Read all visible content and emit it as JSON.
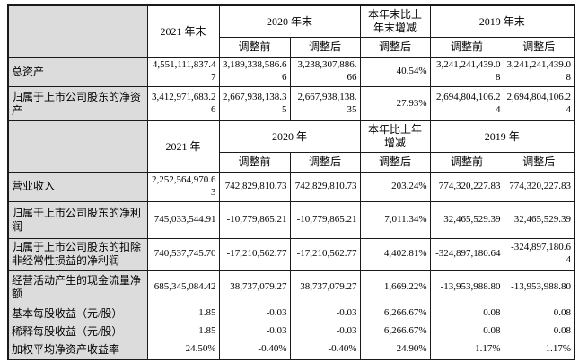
{
  "page": {
    "background_color": "#ffffff",
    "label_column_bg_color": "#dcdcdc",
    "border_color": "#1a1a1a",
    "text_color": "#000000"
  },
  "table": {
    "sections": [
      {
        "header": {
          "period_current": "2021 年末",
          "period_prior": "2020 年末",
          "change": "本年末比上年末增减",
          "period_prior2": "2019 年末",
          "subheaders": [
            "调整前",
            "调整后",
            "调整后",
            "调整前",
            "调整后"
          ]
        },
        "rows": [
          {
            "label": "总资产",
            "values": [
              "4,551,111,837.47",
              "3,189,338,586.66",
              "3,238,307,886.66",
              "40.54%",
              "3,241,241,439.08",
              "3,241,241,439.08"
            ]
          },
          {
            "label": "归属于上市公司股东的净资产",
            "values": [
              "3,412,971,683.26",
              "2,667,938,138.35",
              "2,667,938,138.35",
              "27.93%",
              "2,694,804,106.24",
              "2,694,804,106.24"
            ]
          }
        ]
      },
      {
        "header": {
          "period_current": "2021 年",
          "period_prior": "2020 年",
          "change": "本年比上年增减",
          "period_prior2": "2019 年",
          "subheaders": [
            "调整前",
            "调整后",
            "调整后",
            "调整前",
            "调整后"
          ]
        },
        "rows": [
          {
            "label": "营业收入",
            "values": [
              "2,252,564,970.63",
              "742,829,810.73",
              "742,829,810.73",
              "203.24%",
              "774,320,227.83",
              "774,320,227.83"
            ]
          },
          {
            "label": "归属于上市公司股东的净利润",
            "values": [
              "745,033,544.91",
              "-10,779,865.21",
              "-10,779,865.21",
              "7,011.34%",
              "32,465,529.39",
              "32,465,529.39"
            ]
          },
          {
            "label": "归属于上市公司股东的扣除非经常性损益的净利润",
            "values": [
              "740,537,745.70",
              "-17,210,562.77",
              "-17,210,562.77",
              "4,402.81%",
              "-324,897,180.64",
              "-324,897,180.64"
            ]
          },
          {
            "label": "经营活动产生的现金流量净额",
            "values": [
              "685,345,084.42",
              "38,737,079.27",
              "38,737,079.27",
              "1,669.22%",
              "-13,953,988.80",
              "-13,953,988.80"
            ]
          },
          {
            "label": "基本每股收益（元/股）",
            "values": [
              "1.85",
              "-0.03",
              "-0.03",
              "6,266.67%",
              "0.08",
              "0.08"
            ]
          },
          {
            "label": "稀释每股收益（元/股）",
            "values": [
              "1.85",
              "-0.03",
              "-0.03",
              "6,266.67%",
              "0.08",
              "0.08"
            ]
          },
          {
            "label": "加权平均净资产收益率",
            "values": [
              "24.50%",
              "-0.40%",
              "-0.40%",
              "24.90%",
              "1.17%",
              "1.17%"
            ]
          }
        ]
      }
    ]
  }
}
